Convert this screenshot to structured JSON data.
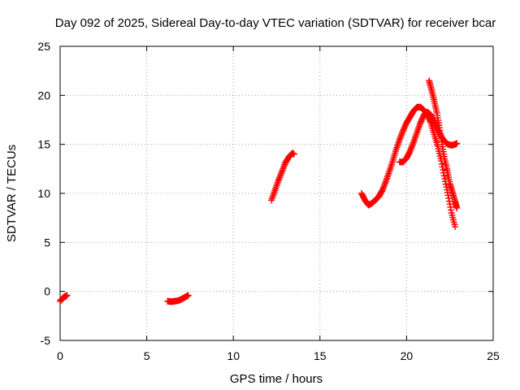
{
  "chart_data": {
    "type": "scatter",
    "title": "Day 092 of 2025, Sidereal Day-to-day VTEC variation (SDTVAR) for receiver bcar",
    "xlabel": "GPS time / hours",
    "ylabel": "SDTVAR / TECUs",
    "xlim": [
      0,
      25
    ],
    "ylim": [
      -5,
      25
    ],
    "x_ticks": [
      0,
      5,
      10,
      15,
      20,
      25
    ],
    "y_ticks": [
      -5,
      0,
      5,
      10,
      15,
      20,
      25
    ],
    "grid": true,
    "legend": "none",
    "marker": "+",
    "color": "#ff0000",
    "series": [
      {
        "x": [
          0.0,
          0.1,
          0.2,
          0.3,
          0.4
        ],
        "y": [
          -1.0,
          -0.8,
          -0.6,
          -0.5,
          -0.4
        ]
      },
      {
        "x": [
          6.2,
          6.4,
          6.6,
          6.8,
          7.0,
          7.2,
          7.4
        ],
        "y": [
          -1.0,
          -1.05,
          -1.0,
          -0.95,
          -0.8,
          -0.6,
          -0.4
        ]
      },
      {
        "x": [
          12.2,
          12.4,
          12.6,
          12.8,
          13.0,
          13.2,
          13.4,
          13.5
        ],
        "y": [
          9.3,
          10.3,
          11.3,
          12.2,
          13.1,
          13.7,
          14.1,
          14.0
        ]
      },
      {
        "x": [
          17.4,
          17.6,
          17.8,
          18.0,
          18.2,
          18.4,
          18.6,
          18.8,
          19.0,
          19.2,
          19.4,
          19.6,
          19.8,
          20.0,
          20.2,
          20.4,
          20.6,
          20.8,
          21.0,
          21.2,
          21.4,
          21.6,
          21.8,
          22.0,
          22.2,
          22.4,
          22.6,
          22.8
        ],
        "y": [
          10.0,
          9.3,
          8.8,
          9.0,
          9.3,
          9.7,
          10.3,
          11.2,
          12.2,
          13.3,
          14.5,
          15.5,
          16.4,
          17.2,
          17.8,
          18.4,
          18.8,
          18.8,
          18.5,
          18.0,
          17.2,
          16.0,
          14.8,
          13.3,
          11.5,
          9.8,
          8.0,
          6.6
        ]
      },
      {
        "x": [
          19.6,
          19.8,
          20.0,
          20.2,
          20.4,
          20.6,
          20.8,
          21.0,
          21.2,
          21.4,
          21.6,
          21.8,
          22.0,
          22.2,
          22.4,
          22.6,
          22.8,
          22.9
        ],
        "y": [
          13.2,
          13.2,
          13.6,
          14.3,
          15.2,
          16.2,
          17.2,
          18.0,
          18.3,
          18.0,
          17.3,
          16.5,
          15.8,
          15.3,
          15.0,
          14.9,
          15.0,
          15.1
        ]
      },
      {
        "x": [
          21.3,
          21.45,
          21.6,
          21.75,
          21.9,
          22.05,
          22.2,
          22.35,
          22.5,
          22.65,
          22.8,
          22.9
        ],
        "y": [
          21.5,
          20.5,
          19.4,
          18.2,
          16.7,
          15.0,
          13.5,
          12.3,
          11.0,
          10.1,
          9.2,
          8.5
        ]
      }
    ]
  }
}
